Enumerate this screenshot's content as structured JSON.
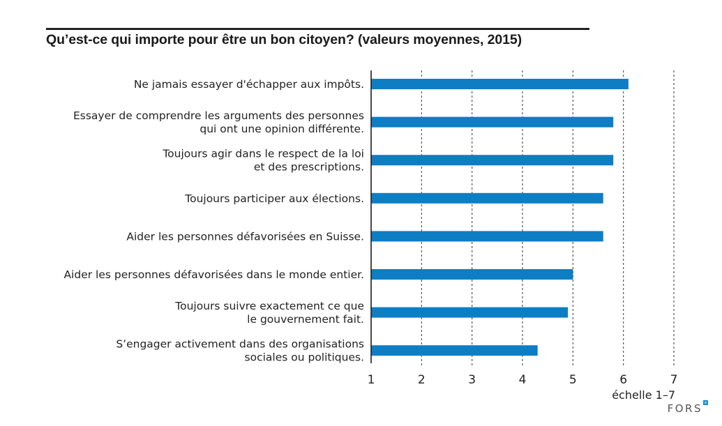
{
  "chart_data": {
    "type": "bar",
    "orientation": "horizontal",
    "title": "Qu’est-ce qui importe pour être un bon citoyen? (valeurs moyennes, 2015)",
    "categories": [
      [
        "Ne jamais essayer d'échapper aux impôts."
      ],
      [
        "Essayer de comprendre les arguments des personnes",
        "qui ont une opinion différente."
      ],
      [
        "Toujours agir dans le respect de la loi",
        "et des prescriptions."
      ],
      [
        "Toujours participer aux élections."
      ],
      [
        "Aider les personnes défavorisées en Suisse."
      ],
      [
        "Aider les personnes défavorisées dans le monde entier."
      ],
      [
        "Toujours suivre exactement ce que",
        "le gouvernement fait."
      ],
      [
        "S’engager activement dans des organisations",
        "sociales ou politiques."
      ]
    ],
    "values": [
      6.1,
      5.8,
      5.8,
      5.6,
      5.6,
      5.0,
      4.9,
      4.3
    ],
    "xlim": [
      1,
      7
    ],
    "xticks": [
      1,
      2,
      3,
      4,
      5,
      6,
      7
    ],
    "xlabel": "échelle 1–7",
    "ylabel": "",
    "grid": "vertical dashed",
    "bar_color": "#0e7ec4",
    "source_logo": "FORS",
    "logo_accent_color": "#1a8fd6"
  }
}
